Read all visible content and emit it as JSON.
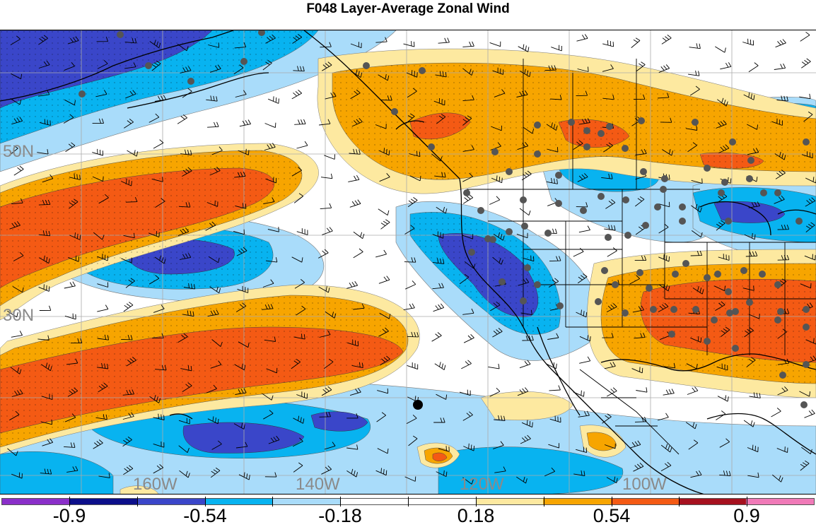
{
  "title": "F048 Layer-Average Zonal Wind",
  "map": {
    "type": "filled-contour-map",
    "variable": "zonal wind anomaly",
    "lat_labels": [
      "50N",
      "30N"
    ],
    "lon_labels": [
      "160W",
      "140W",
      "120W",
      "100W"
    ]
  },
  "colorbar": {
    "colors": [
      "#8a2fc9",
      "#0c0f8a",
      "#3a46c9",
      "#08b3f0",
      "#a9dcfa",
      "#ffffff",
      "#ffffff",
      "#fde9a0",
      "#f7a500",
      "#f45a14",
      "#a6111f",
      "#f07ab8"
    ],
    "tick_labels": [
      "-0.9",
      "-0.54",
      "-0.18",
      "0.18",
      "0.54",
      "0.9"
    ]
  }
}
